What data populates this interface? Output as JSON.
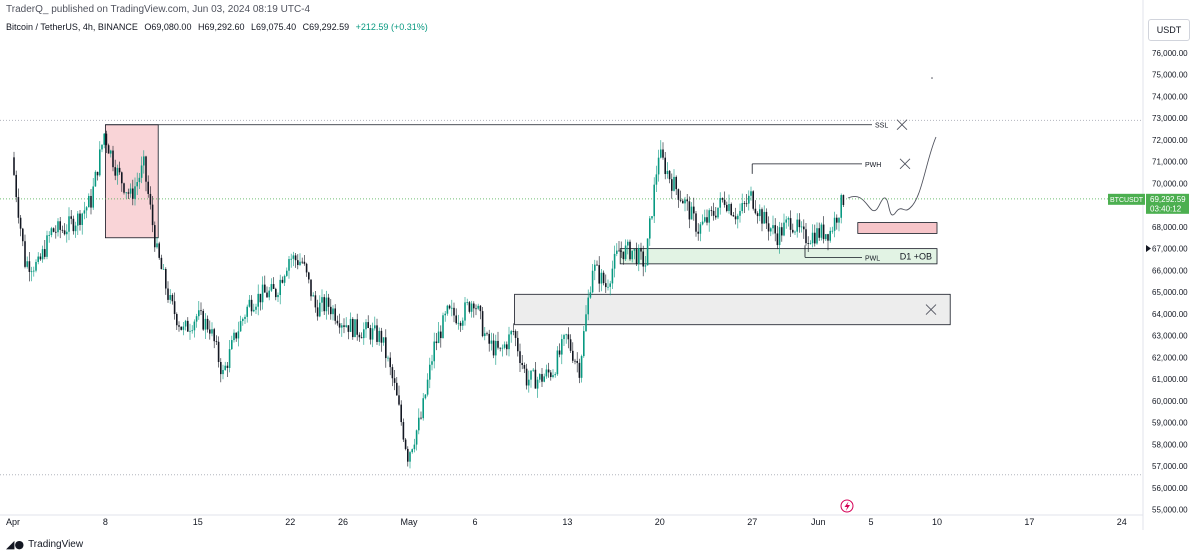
{
  "header": {
    "published": "TraderQ_ published on TradingView.com, Jun 03, 2024 08:19 UTC-4",
    "symbol": "Bitcoin / TetherUS, 4h, BINANCE",
    "open": "O69,080.00",
    "high": "H69,292.60",
    "low": "L69,075.40",
    "close": "C69,292.59",
    "change": "+212.59 (+0.31%)",
    "currency_button": "USDT"
  },
  "footer": {
    "brand": "TradingView"
  },
  "colors": {
    "up": "#089981",
    "down": "#131722",
    "zone_red": "#f7c5c9",
    "zone_green": "#e2f3e4",
    "zone_gray": "#ededed",
    "price_tag": "#4caf50"
  },
  "icons": [
    "tradingview-logo-icon",
    "lightning-icon",
    "cross-mark-icon"
  ],
  "chart_data": {
    "type": "candlestick",
    "symbol": "BTCUSDT",
    "interval": "4h",
    "last_price": "69,292.59",
    "countdown": "03:40:12",
    "y_ticks": [
      "76,000.00",
      "75,000.00",
      "74,000.00",
      "73,000.00",
      "72,000.00",
      "71,000.00",
      "70,000.00",
      "69,000.00",
      "68,000.00",
      "67,000.00",
      "66,000.00",
      "65,000.00",
      "64,000.00",
      "63,000.00",
      "62,000.00",
      "61,000.00",
      "60,000.00",
      "59,000.00",
      "58,000.00",
      "57,000.00",
      "56,000.00",
      "55,000.00"
    ],
    "y_tick_values": [
      76000,
      75000,
      74000,
      73000,
      72000,
      71000,
      70000,
      69000,
      68000,
      67000,
      66000,
      65000,
      64000,
      63000,
      62000,
      61000,
      60000,
      59000,
      58000,
      57000,
      56000,
      55000
    ],
    "x_ticks": [
      "Apr",
      "8",
      "15",
      "22",
      "26",
      "May",
      "6",
      "13",
      "20",
      "27",
      "Jun",
      "5",
      "10",
      "17",
      "24"
    ],
    "x_tick_dates": [
      "2024-04-01",
      "2024-04-08",
      "2024-04-15",
      "2024-04-22",
      "2024-04-26",
      "2024-05-01",
      "2024-05-06",
      "2024-05-13",
      "2024-05-20",
      "2024-05-27",
      "2024-06-01",
      "2024-06-05",
      "2024-06-10",
      "2024-06-17",
      "2024-06-24"
    ],
    "price_path": [
      [
        "2024-04-01",
        71200
      ],
      [
        "2024-04-02",
        66400
      ],
      [
        "2024-04-03",
        66200
      ],
      [
        "2024-04-04",
        67800
      ],
      [
        "2024-04-05",
        67900
      ],
      [
        "2024-04-06",
        68400
      ],
      [
        "2024-04-07",
        69200
      ],
      [
        "2024-04-08",
        72300
      ],
      [
        "2024-04-09",
        70500
      ],
      [
        "2024-04-10",
        69400
      ],
      [
        "2024-04-11",
        70800
      ],
      [
        "2024-04-12",
        66800
      ],
      [
        "2024-04-13",
        64500
      ],
      [
        "2024-04-14",
        63200
      ],
      [
        "2024-04-15",
        63900
      ],
      [
        "2024-04-16",
        63400
      ],
      [
        "2024-04-17",
        61200
      ],
      [
        "2024-04-18",
        63100
      ],
      [
        "2024-04-19",
        64500
      ],
      [
        "2024-04-20",
        64900
      ],
      [
        "2024-04-21",
        65000
      ],
      [
        "2024-04-22",
        66600
      ],
      [
        "2024-04-23",
        66400
      ],
      [
        "2024-04-24",
        64300
      ],
      [
        "2024-04-25",
        64400
      ],
      [
        "2024-04-26",
        63700
      ],
      [
        "2024-04-27",
        63300
      ],
      [
        "2024-04-28",
        63200
      ],
      [
        "2024-04-29",
        62900
      ],
      [
        "2024-04-30",
        60600
      ],
      [
        "2024-05-01",
        57500
      ],
      [
        "2024-05-02",
        59200
      ],
      [
        "2024-05-03",
        62500
      ],
      [
        "2024-05-04",
        64000
      ],
      [
        "2024-05-05",
        63900
      ],
      [
        "2024-05-06",
        64700
      ],
      [
        "2024-05-07",
        62700
      ],
      [
        "2024-05-08",
        62200
      ],
      [
        "2024-05-09",
        63200
      ],
      [
        "2024-05-10",
        61000
      ],
      [
        "2024-05-11",
        61000
      ],
      [
        "2024-05-12",
        61400
      ],
      [
        "2024-05-13",
        62900
      ],
      [
        "2024-05-14",
        61500
      ],
      [
        "2024-05-15",
        66200
      ],
      [
        "2024-05-16",
        65300
      ],
      [
        "2024-05-17",
        66900
      ],
      [
        "2024-05-18",
        66900
      ],
      [
        "2024-05-19",
        66300
      ],
      [
        "2024-05-20",
        71400
      ],
      [
        "2024-05-21",
        70100
      ],
      [
        "2024-05-22",
        69100
      ],
      [
        "2024-05-23",
        67900
      ],
      [
        "2024-05-24",
        68500
      ],
      [
        "2024-05-25",
        69300
      ],
      [
        "2024-05-26",
        68500
      ],
      [
        "2024-05-27",
        69400
      ],
      [
        "2024-05-28",
        68300
      ],
      [
        "2024-05-29",
        67600
      ],
      [
        "2024-05-30",
        68300
      ],
      [
        "2024-05-31",
        67500
      ],
      [
        "2024-06-01",
        67700
      ],
      [
        "2024-06-02",
        67800
      ],
      [
        "2024-06-03",
        69292
      ]
    ],
    "annotations": {
      "labels": [
        "SSL",
        "PWH",
        "PWL",
        "D1 +OB"
      ],
      "levels": {
        "SSL": 72700,
        "PWH": 70900,
        "PWL": 66600
      },
      "zones": [
        {
          "label": "",
          "top": 72700,
          "bottom": 67500,
          "from": "2024-04-08",
          "to": "2024-04-12",
          "color": "red"
        },
        {
          "label": "",
          "top": 68200,
          "bottom": 67700,
          "from": "2024-06-04",
          "to": "2024-06-10",
          "color": "red"
        },
        {
          "label": "D1 +OB",
          "top": 67000,
          "bottom": 66300,
          "from": "2024-05-17",
          "to": "2024-06-10",
          "color": "green"
        },
        {
          "label": "",
          "top": 64900,
          "bottom": 63500,
          "from": "2024-05-09",
          "to": "2024-06-11",
          "color": "gray"
        }
      ]
    }
  }
}
